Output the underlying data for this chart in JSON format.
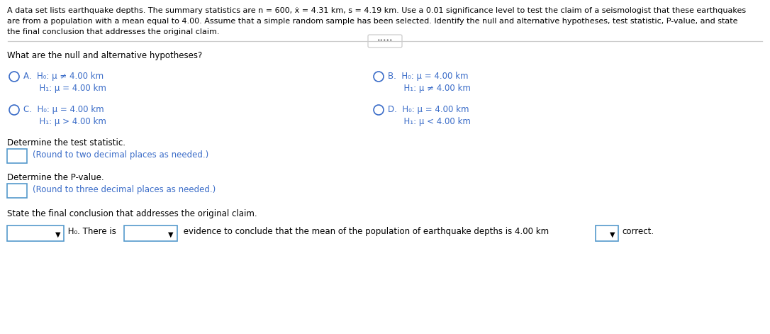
{
  "bg_color": "#ffffff",
  "text_color": "#000000",
  "blue_color": "#3a6cc8",
  "gray_color": "#888888",
  "line_color": "#cccccc",
  "header_line1": "A data set lists earthquake depths. The summary statistics are n = 600, ẋ = 4.31 km, s = 4.19 km. Use a 0.01 significance level to test the claim of a seismologist that these earthquakes",
  "header_line2": "are from a population with a mean equal to 4.00. Assume that a simple random sample has been selected. Identify the null and alternative hypotheses, test statistic, P-value, and state",
  "header_line3": "the final conclusion that addresses the original claim.",
  "question1": "What are the null and alternative hypotheses?",
  "optA_line1": "A.  H₀: μ ≠ 4.00 km",
  "optA_line2": "      H₁: μ = 4.00 km",
  "optB_line1": "B.  H₀: μ = 4.00 km",
  "optB_line2": "      H₁: μ ≠ 4.00 km",
  "optC_line1": "C.  H₀: μ = 4.00 km",
  "optC_line2": "      H₁: μ > 4.00 km",
  "optD_line1": "D.  H₀: μ = 4.00 km",
  "optD_line2": "      H₁: μ < 4.00 km",
  "test_stat_label": "Determine the test statistic.",
  "test_stat_hint": "(Round to two decimal places as needed.)",
  "pvalue_label": "Determine the P-value.",
  "pvalue_hint": "(Round to three decimal places as needed.)",
  "conclusion_label": "State the final conclusion that addresses the original claim.",
  "conclusion_mid": " evidence to conclude that the mean of the population of earthquake depths is 4.00 km",
  "conclusion_end": "correct.",
  "h0_there_is": " H₀. There is",
  "divider_dots": "•••••"
}
